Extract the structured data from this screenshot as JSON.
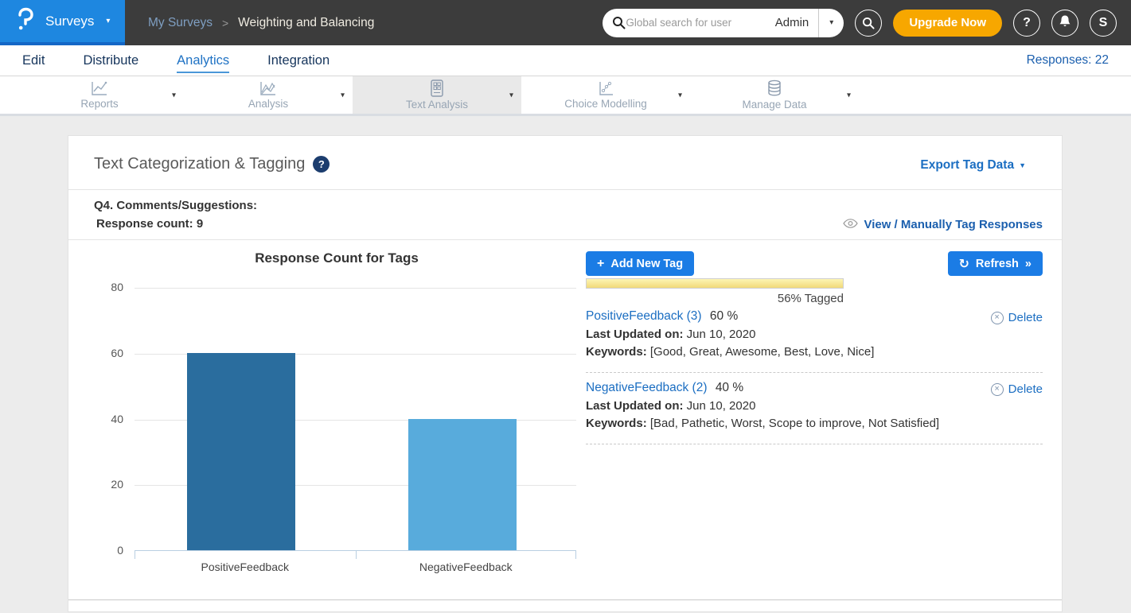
{
  "icons": {
    "caret_down": "▾",
    "caret_down_solid": "▼",
    "breadcrumb_sep": ">",
    "plus": "+",
    "refresh_glyph": "↻",
    "raquo": "»",
    "close_x": "×",
    "question_mark": "?"
  },
  "header": {
    "product": "Surveys",
    "breadcrumb": [
      "My Surveys",
      "Weighting and Balancing"
    ],
    "search": {
      "placeholder": "Global search for user",
      "scope": "Admin"
    },
    "upgrade_label": "Upgrade Now",
    "avatar": "S"
  },
  "nav": {
    "items": [
      {
        "label": "Edit"
      },
      {
        "label": "Distribute"
      },
      {
        "label": "Analytics"
      },
      {
        "label": "Integration"
      }
    ],
    "responses": "Responses: 22"
  },
  "subtabs": [
    {
      "label": "Reports"
    },
    {
      "label": "Analysis"
    },
    {
      "label": "Text Analysis"
    },
    {
      "label": "Choice Modelling"
    },
    {
      "label": "Manage Data"
    }
  ],
  "card": {
    "title": "Text Categorization & Tagging",
    "export_label": "Export Tag Data",
    "question": "Q4. Comments/Suggestions:",
    "response_count": "Response count: 9",
    "view_link": "View / Manually Tag Responses",
    "add_tag_label": "Add New Tag",
    "refresh_label": "Refresh",
    "tagged_label": "56% Tagged",
    "tags": [
      {
        "name": "PositiveFeedback (3)",
        "percent": "60 %",
        "updated_label": "Last Updated on:",
        "updated": " Jun 10, 2020",
        "keywords_label": "Keywords:",
        "keywords": " [Good, Great, Awesome, Best, Love, Nice]",
        "delete_label": "Delete"
      },
      {
        "name": "NegativeFeedback (2)",
        "percent": "40 %",
        "updated_label": "Last Updated on:",
        "updated": " Jun 10, 2020",
        "keywords_label": "Keywords:",
        "keywords": " [Bad, Pathetic, Worst, Scope to improve, Not Satisfied]",
        "delete_label": "Delete"
      }
    ]
  },
  "chart_data": {
    "type": "bar",
    "title": "Response Count for Tags",
    "categories": [
      "PositiveFeedback",
      "NegativeFeedback"
    ],
    "values": [
      60,
      40
    ],
    "colors": [
      "#2a6d9e",
      "#58abdc"
    ],
    "ylim": [
      0,
      80
    ],
    "yticks": [
      0,
      20,
      40,
      60,
      80
    ],
    "xlabel": "",
    "ylabel": "",
    "grid": true,
    "legend": false
  }
}
